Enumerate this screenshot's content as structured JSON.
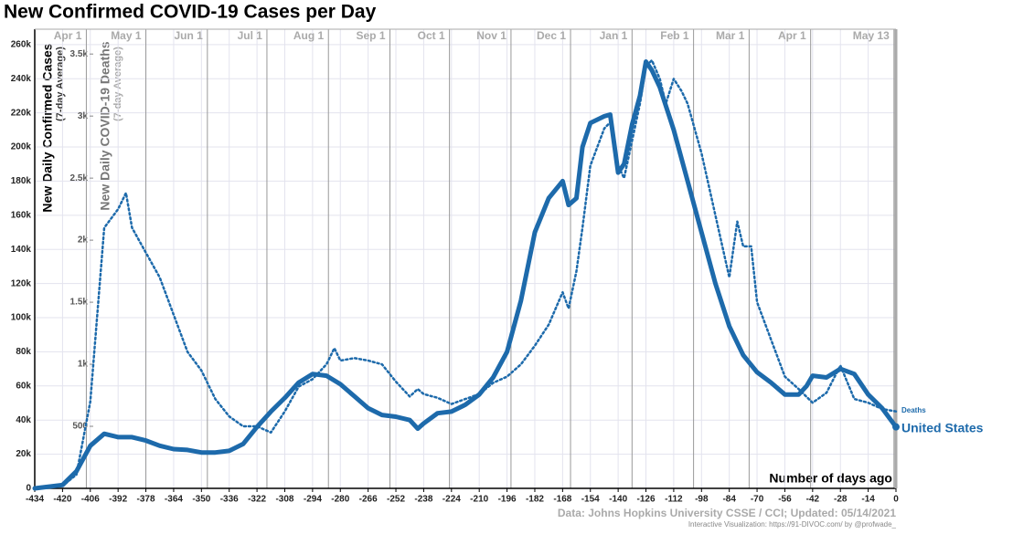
{
  "chart_data": {
    "type": "line",
    "title": "New Confirmed COVID-19 Cases per Day",
    "y_label": "New Daily Confirmed Cases",
    "y_sublabel": "(7-day Average)",
    "y2_label": "New Daily COVID-19 Deaths",
    "y2_sublabel": "(7-day Average)",
    "x_label": "Number of days ago",
    "source": "Data: Johns Hopkins University CSSE / CCI; Updated: 05/14/2021",
    "credit": "Interactive Visualization: https://91-DIVOC.com/ by @profwade_",
    "xlim": [
      -434,
      0
    ],
    "xticks": [
      -434,
      -420,
      -406,
      -392,
      -378,
      -364,
      -350,
      -336,
      -322,
      -308,
      -294,
      -280,
      -266,
      -252,
      -238,
      -224,
      -210,
      -196,
      -182,
      -168,
      -154,
      -140,
      -126,
      -112,
      -98,
      -84,
      -70,
      -56,
      -42,
      -28,
      -14,
      0
    ],
    "month_ticks": [
      {
        "value": -408,
        "label": "Apr 1"
      },
      {
        "value": -378,
        "label": "May 1"
      },
      {
        "value": -347,
        "label": "Jun 1"
      },
      {
        "value": -317,
        "label": "Jul 1"
      },
      {
        "value": -286,
        "label": "Aug 1"
      },
      {
        "value": -255,
        "label": "Sep 1"
      },
      {
        "value": -225,
        "label": "Oct 1"
      },
      {
        "value": -194,
        "label": "Nov 1"
      },
      {
        "value": -164,
        "label": "Dec 1"
      },
      {
        "value": -133,
        "label": "Jan 1"
      },
      {
        "value": -102,
        "label": "Feb 1"
      },
      {
        "value": -74,
        "label": "Mar 1"
      },
      {
        "value": -43,
        "label": "Apr 1"
      },
      {
        "value": -1,
        "label": "May 13"
      }
    ],
    "ylim": [
      0,
      269000
    ],
    "yticks": [
      0,
      {
        "value": 20000,
        "label": "20k"
      },
      {
        "value": 40000,
        "label": "40k"
      },
      {
        "value": 60000,
        "label": "60k"
      },
      {
        "value": 80000,
        "label": "80k"
      },
      {
        "value": 100000,
        "label": "100k"
      },
      {
        "value": 120000,
        "label": "120k"
      },
      {
        "value": 140000,
        "label": "140k"
      },
      {
        "value": 160000,
        "label": "160k"
      },
      {
        "value": 180000,
        "label": "180k"
      },
      {
        "value": 200000,
        "label": "200k"
      },
      {
        "value": 220000,
        "label": "220k"
      },
      {
        "value": 240000,
        "label": "240k"
      },
      {
        "value": 260000,
        "label": "260k"
      }
    ],
    "y2lim": [
      0,
      3700
    ],
    "y2ticks": [
      500,
      {
        "value": 1000,
        "label": "1k"
      },
      {
        "value": 1500,
        "label": "1.5k"
      },
      {
        "value": 2000,
        "label": "2k"
      },
      {
        "value": 2500,
        "label": "2.5k"
      },
      {
        "value": 3000,
        "label": "3k"
      },
      {
        "value": 3500,
        "label": "3.5k"
      }
    ],
    "grid": true,
    "series": [
      {
        "name": "United States",
        "color": "#1d6aab",
        "x": [
          -434,
          -420,
          -413,
          -406,
          -399,
          -392,
          -385,
          -378,
          -371,
          -364,
          -357,
          -350,
          -343,
          -336,
          -329,
          -322,
          -315,
          -308,
          -301,
          -294,
          -287,
          -280,
          -273,
          -266,
          -259,
          -252,
          -245,
          -241,
          -238,
          -231,
          -224,
          -217,
          -210,
          -203,
          -196,
          -189,
          -182,
          -175,
          -168,
          -165,
          -161,
          -158,
          -154,
          -147,
          -144,
          -140,
          -137,
          -133,
          -129,
          -126,
          -123,
          -119,
          -112,
          -105,
          -98,
          -91,
          -84,
          -77,
          -70,
          -63,
          -56,
          -49,
          -45,
          -42,
          -35,
          -28,
          -21,
          -14,
          -7,
          0
        ],
        "values": [
          0,
          2000,
          10000,
          25000,
          32000,
          30000,
          30000,
          28000,
          25000,
          23000,
          22500,
          21000,
          21000,
          22000,
          26000,
          36000,
          45000,
          53000,
          62000,
          67000,
          66000,
          61000,
          54000,
          47000,
          43000,
          42000,
          40000,
          35000,
          38000,
          44000,
          45000,
          49000,
          55000,
          65000,
          80000,
          110000,
          150000,
          170000,
          180000,
          166000,
          170000,
          200000,
          214000,
          218000,
          219000,
          185000,
          190000,
          213000,
          230000,
          250000,
          245000,
          235000,
          210000,
          180000,
          150000,
          120000,
          95000,
          78000,
          68000,
          62000,
          55000,
          55000,
          60000,
          66000,
          65000,
          70000,
          67000,
          55000,
          47000,
          36000
        ]
      },
      {
        "name": "Deaths",
        "color": "#1d6aab",
        "axis": "y2",
        "x": [
          -434,
          -420,
          -413,
          -406,
          -399,
          -392,
          -388,
          -385,
          -378,
          -371,
          -364,
          -357,
          -350,
          -343,
          -336,
          -329,
          -322,
          -315,
          -308,
          -301,
          -294,
          -287,
          -283,
          -280,
          -273,
          -266,
          -259,
          -252,
          -245,
          -241,
          -238,
          -231,
          -224,
          -217,
          -210,
          -203,
          -196,
          -189,
          -182,
          -175,
          -168,
          -165,
          -161,
          -158,
          -154,
          -147,
          -144,
          -140,
          -137,
          -133,
          -129,
          -126,
          -123,
          -119,
          -116,
          -112,
          -108,
          -105,
          -98,
          -91,
          -84,
          -80,
          -77,
          -73,
          -70,
          -63,
          -56,
          -49,
          -42,
          -35,
          -28,
          -21,
          -14,
          -7,
          0
        ],
        "values": [
          0,
          20,
          110,
          700,
          2100,
          2250,
          2380,
          2100,
          1900,
          1700,
          1400,
          1100,
          950,
          720,
          580,
          500,
          500,
          450,
          620,
          820,
          880,
          1000,
          1130,
          1030,
          1050,
          1030,
          1000,
          860,
          740,
          800,
          760,
          730,
          680,
          720,
          760,
          850,
          900,
          1000,
          1150,
          1320,
          1580,
          1450,
          1750,
          2100,
          2600,
          2900,
          2950,
          2600,
          2500,
          2800,
          3100,
          3400,
          3450,
          3300,
          3100,
          3300,
          3200,
          3100,
          2700,
          2200,
          1700,
          2150,
          1950,
          1950,
          1500,
          1200,
          900,
          800,
          690,
          770,
          990,
          720,
          690,
          640,
          620
        ]
      }
    ]
  }
}
